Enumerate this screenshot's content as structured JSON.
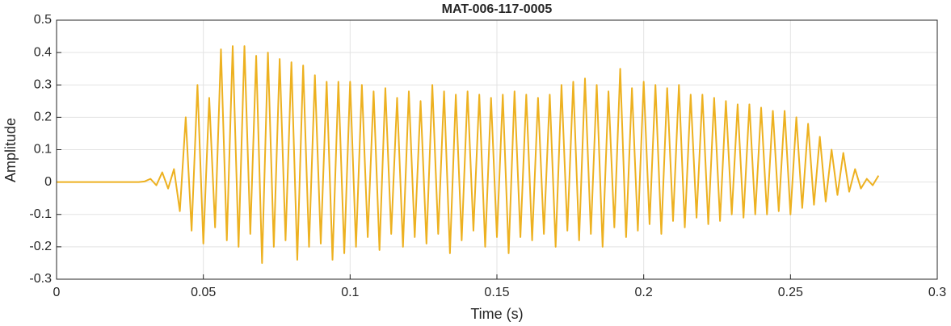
{
  "chart_data": {
    "type": "line",
    "title": "MAT-006-117-0005",
    "xlabel": "Time (s)",
    "ylabel": "Amplitude",
    "x": [
      0,
      0.002,
      0.004,
      0.006,
      0.008,
      0.01,
      0.012,
      0.014,
      0.016,
      0.018,
      0.02,
      0.022,
      0.024,
      0.026,
      0.028,
      0.03,
      0.032,
      0.034,
      0.036,
      0.038,
      0.04,
      0.042,
      0.044,
      0.046,
      0.048,
      0.05,
      0.052,
      0.054,
      0.056,
      0.058,
      0.06,
      0.062,
      0.064,
      0.066,
      0.068,
      0.07,
      0.072,
      0.074,
      0.076,
      0.078,
      0.08,
      0.082,
      0.084,
      0.086,
      0.088,
      0.09,
      0.092,
      0.094,
      0.096,
      0.098,
      0.1,
      0.102,
      0.104,
      0.106,
      0.108,
      0.11,
      0.112,
      0.114,
      0.116,
      0.118,
      0.12,
      0.122,
      0.124,
      0.126,
      0.128,
      0.13,
      0.132,
      0.134,
      0.136,
      0.138,
      0.14,
      0.142,
      0.144,
      0.146,
      0.148,
      0.15,
      0.152,
      0.154,
      0.156,
      0.158,
      0.16,
      0.162,
      0.164,
      0.166,
      0.168,
      0.17,
      0.172,
      0.174,
      0.176,
      0.178,
      0.18,
      0.182,
      0.184,
      0.186,
      0.188,
      0.19,
      0.192,
      0.194,
      0.196,
      0.198,
      0.2,
      0.202,
      0.204,
      0.206,
      0.208,
      0.21,
      0.212,
      0.214,
      0.216,
      0.218,
      0.22,
      0.222,
      0.224,
      0.226,
      0.228,
      0.23,
      0.232,
      0.234,
      0.236,
      0.238,
      0.24,
      0.242,
      0.244,
      0.246,
      0.248,
      0.25,
      0.252,
      0.254,
      0.256,
      0.258,
      0.26,
      0.262,
      0.264,
      0.266,
      0.268,
      0.27,
      0.272,
      0.274,
      0.276,
      0.278,
      0.28
    ],
    "series": [
      {
        "color": "#EDB120",
        "values": [
          0,
          0,
          0,
          0,
          0,
          0,
          0,
          0,
          0,
          0,
          0,
          0,
          0,
          0,
          0,
          0.002,
          0.01,
          -0.01,
          0.03,
          -0.02,
          0.04,
          -0.09,
          0.2,
          -0.15,
          0.3,
          -0.19,
          0.26,
          -0.14,
          0.41,
          -0.18,
          0.42,
          -0.2,
          0.42,
          -0.16,
          0.39,
          -0.25,
          0.4,
          -0.2,
          0.38,
          -0.18,
          0.37,
          -0.24,
          0.36,
          -0.2,
          0.33,
          -0.19,
          0.31,
          -0.24,
          0.31,
          -0.22,
          0.31,
          -0.2,
          0.3,
          -0.17,
          0.28,
          -0.21,
          0.29,
          -0.16,
          0.26,
          -0.2,
          0.28,
          -0.17,
          0.25,
          -0.19,
          0.3,
          -0.16,
          0.28,
          -0.22,
          0.27,
          -0.18,
          0.28,
          -0.15,
          0.27,
          -0.2,
          0.26,
          -0.17,
          0.27,
          -0.22,
          0.28,
          -0.17,
          0.27,
          -0.18,
          0.26,
          -0.16,
          0.27,
          -0.2,
          0.3,
          -0.15,
          0.31,
          -0.18,
          0.32,
          -0.16,
          0.3,
          -0.2,
          0.28,
          -0.14,
          0.35,
          -0.17,
          0.29,
          -0.15,
          0.31,
          -0.13,
          0.3,
          -0.16,
          0.29,
          -0.12,
          0.3,
          -0.14,
          0.27,
          -0.11,
          0.27,
          -0.13,
          0.26,
          -0.12,
          0.25,
          -0.1,
          0.24,
          -0.11,
          0.24,
          -0.1,
          0.23,
          -0.1,
          0.22,
          -0.09,
          0.22,
          -0.1,
          0.2,
          -0.08,
          0.18,
          -0.07,
          0.14,
          -0.06,
          0.1,
          -0.04,
          0.09,
          -0.03,
          0.04,
          -0.02,
          0.01,
          -0.01,
          0.02
        ]
      }
    ],
    "xlim": [
      0,
      0.3
    ],
    "xticks": [
      0,
      0.05,
      0.1,
      0.15,
      0.2,
      0.25,
      0.3
    ],
    "ylim": [
      -0.3,
      0.5
    ],
    "yticks": [
      -0.3,
      -0.2,
      -0.1,
      0,
      0.1,
      0.2,
      0.3,
      0.4,
      0.5
    ],
    "grid": true
  }
}
